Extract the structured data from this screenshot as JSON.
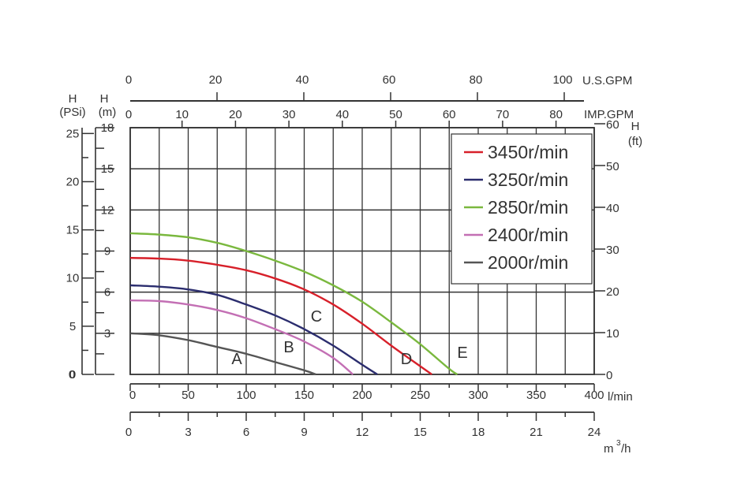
{
  "chart_data": {
    "type": "line",
    "title": "",
    "xlabel": "l/min",
    "ylabel": "H (m)",
    "xlim": [
      0,
      400
    ],
    "ylim": [
      0,
      18
    ],
    "grid": true,
    "legend_position": "top-right",
    "series": [
      {
        "name": "3450r/min",
        "color": "#d7202a",
        "curve_label": "D",
        "x": [
          0,
          25,
          50,
          75,
          100,
          125,
          150,
          175,
          200,
          225,
          250,
          260
        ],
        "y": [
          8.5,
          8.45,
          8.3,
          8.0,
          7.6,
          7.0,
          6.2,
          5.1,
          3.7,
          2.1,
          0.6,
          0
        ]
      },
      {
        "name": "3250r/min",
        "color": "#2b2d6e",
        "curve_label": "C",
        "x": [
          0,
          25,
          50,
          75,
          100,
          125,
          150,
          175,
          200,
          213
        ],
        "y": [
          6.5,
          6.4,
          6.2,
          5.8,
          5.1,
          4.3,
          3.3,
          2.1,
          0.7,
          0
        ]
      },
      {
        "name": "2850r/min",
        "color": "#7ab83e",
        "curve_label": "E",
        "x": [
          0,
          25,
          50,
          75,
          100,
          125,
          150,
          175,
          200,
          225,
          250,
          275,
          282
        ],
        "y": [
          10.3,
          10.2,
          10.0,
          9.6,
          9.0,
          8.3,
          7.5,
          6.5,
          5.3,
          3.8,
          2.2,
          0.4,
          0
        ]
      },
      {
        "name": "2400r/min",
        "color": "#c36fb4",
        "curve_label": "B",
        "x": [
          0,
          25,
          50,
          75,
          100,
          125,
          150,
          175,
          192
        ],
        "y": [
          5.4,
          5.35,
          5.1,
          4.7,
          4.1,
          3.3,
          2.4,
          1.2,
          0
        ]
      },
      {
        "name": "2000r/min",
        "color": "#555555",
        "curve_label": "A",
        "x": [
          0,
          25,
          50,
          75,
          100,
          125,
          150,
          160
        ],
        "y": [
          3.0,
          2.85,
          2.5,
          2.0,
          1.5,
          0.9,
          0.3,
          0
        ]
      }
    ],
    "axes": {
      "usgpm": {
        "label": "U.S.GPM",
        "ticks": [
          "0",
          "20",
          "40",
          "60",
          "80",
          "100"
        ]
      },
      "impgpm": {
        "label": "IMP.GPM",
        "ticks": [
          "0",
          "10",
          "20",
          "30",
          "40",
          "50",
          "60",
          "70",
          "80"
        ]
      },
      "psi": {
        "label_line1": "H",
        "label_line2": "(PSi)",
        "ticks": [
          "0",
          "5",
          "10",
          "15",
          "20",
          "25"
        ]
      },
      "meter": {
        "label_line1": "H",
        "label_line2": "(m)",
        "ticks": [
          "3",
          "6",
          "9",
          "12",
          "15",
          "18"
        ]
      },
      "feet": {
        "label_line1": "H",
        "label_line2": "(ft)",
        "ticks": [
          "0",
          "10",
          "20",
          "30",
          "40",
          "50",
          "60"
        ]
      },
      "lmin": {
        "label": "l/min",
        "zero_label": "0",
        "ticks": [
          "0",
          "50",
          "100",
          "150",
          "200",
          "250",
          "300",
          "350",
          "400"
        ]
      },
      "m3h": {
        "label_main": "m",
        "label_sup": "3",
        "label_tail": "/h",
        "ticks": [
          "0",
          "3",
          "6",
          "9",
          "12",
          "15",
          "18",
          "21",
          "24"
        ]
      }
    }
  }
}
